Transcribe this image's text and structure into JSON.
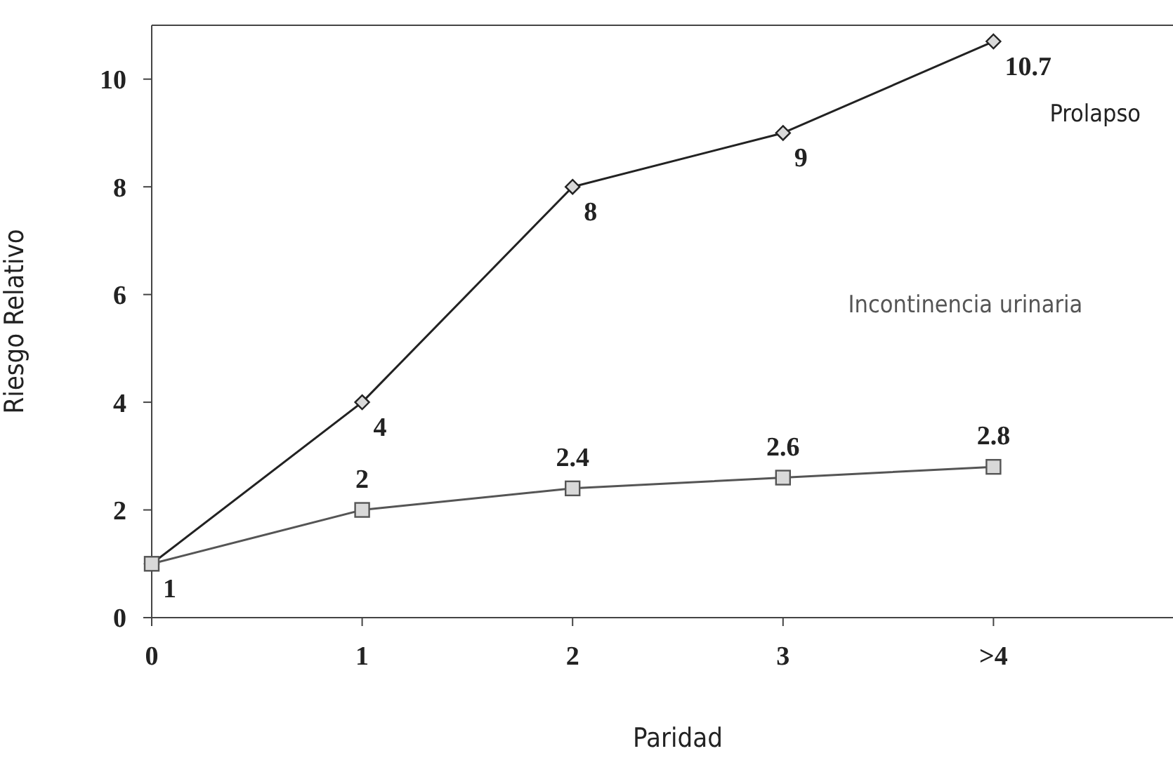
{
  "chart_data": {
    "type": "line",
    "xlabel": "Paridad",
    "ylabel": "Riesgo Relativo",
    "categories": [
      "0",
      "1",
      "2",
      "3",
      ">4",
      null
    ],
    "ylim": [
      0,
      11
    ],
    "yticks": [
      0,
      2,
      4,
      6,
      8,
      10
    ],
    "series": [
      {
        "name": "Prolapso",
        "color": "#222222",
        "marker": "diamond",
        "values": [
          1,
          4,
          8,
          9,
          10.7,
          null
        ],
        "value_labels": [
          "1",
          "4",
          "8",
          "9",
          "10.7",
          null
        ]
      },
      {
        "name": "Incontinencia urinaria",
        "color": "#555555",
        "marker": "square",
        "values": [
          1,
          2,
          2.4,
          2.6,
          2.8,
          null
        ],
        "value_labels": [
          null,
          "2",
          "2.4",
          "2.6",
          "2.8",
          null
        ]
      }
    ]
  }
}
